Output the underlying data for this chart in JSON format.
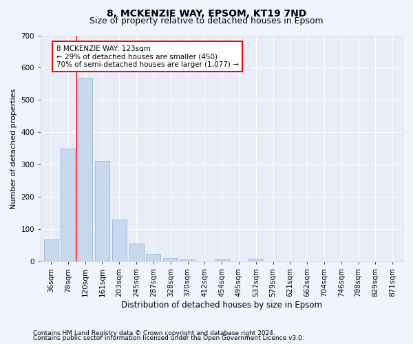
{
  "title1": "8, MCKENZIE WAY, EPSOM, KT19 7ND",
  "title2": "Size of property relative to detached houses in Epsom",
  "xlabel": "Distribution of detached houses by size in Epsom",
  "ylabel": "Number of detached properties",
  "categories": [
    "36sqm",
    "78sqm",
    "120sqm",
    "161sqm",
    "203sqm",
    "245sqm",
    "287sqm",
    "328sqm",
    "370sqm",
    "412sqm",
    "454sqm",
    "495sqm",
    "537sqm",
    "579sqm",
    "621sqm",
    "662sqm",
    "704sqm",
    "746sqm",
    "788sqm",
    "829sqm",
    "871sqm"
  ],
  "values": [
    68,
    350,
    570,
    312,
    130,
    56,
    24,
    12,
    6,
    0,
    6,
    0,
    10,
    0,
    0,
    0,
    0,
    0,
    0,
    0,
    0
  ],
  "bar_color": "#c8d8ef",
  "bar_edge_color": "#8aafd4",
  "red_line_x": 1.5,
  "annotation_text": "8 MCKENZIE WAY: 123sqm\n← 29% of detached houses are smaller (450)\n70% of semi-detached houses are larger (1,077) →",
  "annotation_box_color": "white",
  "annotation_box_edge_color": "red",
  "ylim": [
    0,
    700
  ],
  "yticks": [
    0,
    100,
    200,
    300,
    400,
    500,
    600,
    700
  ],
  "footer1": "Contains HM Land Registry data © Crown copyright and database right 2024.",
  "footer2": "Contains public sector information licensed under the Open Government Licence v3.0.",
  "bg_color": "#f0f4ff",
  "plot_bg_color": "#e8eef8",
  "grid_color": "white",
  "title1_fontsize": 10,
  "title2_fontsize": 9,
  "xlabel_fontsize": 8.5,
  "ylabel_fontsize": 8,
  "tick_fontsize": 7.5,
  "footer_fontsize": 6.5,
  "ann_fontsize": 7.5
}
